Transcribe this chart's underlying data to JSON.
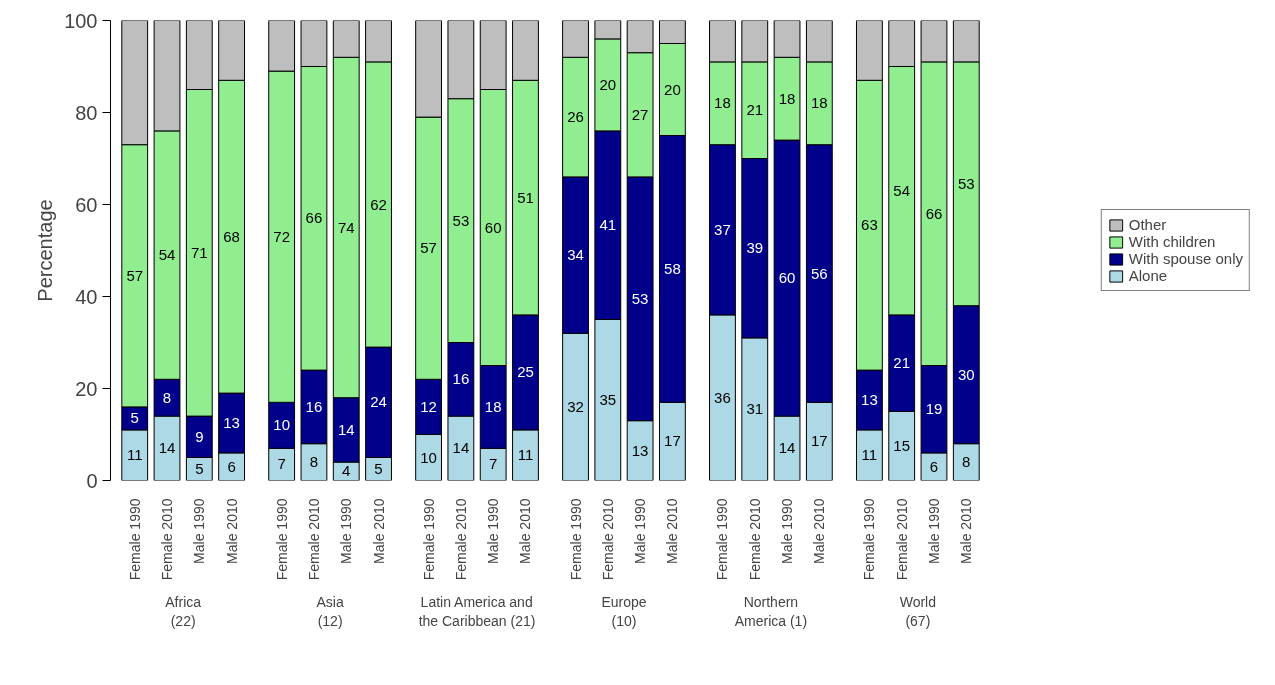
{
  "chart_data": {
    "type": "bar",
    "stacked": true,
    "ylabel": "Percentage",
    "categories": [
      "Female 1990",
      "Female 2010",
      "Male 1990",
      "Male 2010",
      "Female 1990",
      "Female 2010",
      "Male 1990",
      "Male 2010",
      "Female 1990",
      "Female 2010",
      "Male 1990",
      "Male 2010",
      "Female 1990",
      "Female 2010",
      "Male 1990",
      "Male 2010",
      "Female 1990",
      "Female 2010",
      "Male 1990",
      "Male 2010",
      "Female 1990",
      "Female 2010",
      "Male 1990",
      "Male 2010"
    ],
    "series": [
      {
        "name": "Alone",
        "color": "#add8e6",
        "values": [
          11,
          14,
          5,
          6,
          7,
          8,
          4,
          5,
          10,
          14,
          7,
          11,
          32,
          35,
          13,
          17,
          36,
          31,
          14,
          17,
          11,
          15,
          6,
          8
        ],
        "value_labels": [
          "11",
          "14",
          "5",
          "6",
          "7",
          "8",
          "4",
          "5",
          "10",
          "14",
          "7",
          "11",
          "32",
          "35",
          "13",
          "17",
          "36",
          "31",
          "14",
          "17",
          "11",
          "15",
          "6",
          "8"
        ]
      },
      {
        "name": "With spouse only",
        "color": "#00008b",
        "values": [
          5,
          8,
          9,
          13,
          10,
          16,
          14,
          24,
          12,
          16,
          18,
          25,
          34,
          41,
          53,
          58,
          37,
          39,
          60,
          56,
          13,
          21,
          19,
          30
        ],
        "value_labels": [
          "5",
          "8",
          "9",
          "13",
          "10",
          "16",
          "14",
          "24",
          "12",
          "16",
          "18",
          "25",
          "34",
          "41",
          "53",
          "58",
          "37",
          "39",
          "60",
          "56",
          "13",
          "21",
          "19",
          "30"
        ]
      },
      {
        "name": "With children",
        "color": "#90ee90",
        "values": [
          57,
          54,
          71,
          68,
          72,
          66,
          74,
          62,
          57,
          53,
          60,
          51,
          26,
          20,
          27,
          20,
          18,
          21,
          18,
          18,
          63,
          54,
          66,
          53
        ],
        "value_labels": [
          "57",
          "54",
          "71",
          "68",
          "72",
          "66",
          "74",
          "62",
          "57",
          "53",
          "60",
          "51",
          "26",
          "20",
          "27",
          "20",
          "18",
          "21",
          "18",
          "18",
          "63",
          "54",
          "66",
          "53"
        ]
      },
      {
        "name": "Other",
        "color": "#bebebe",
        "values": [
          27,
          24,
          15,
          13,
          11,
          10,
          8,
          9,
          21,
          17,
          15,
          13,
          8,
          4,
          7,
          5,
          9,
          9,
          8,
          9,
          13,
          10,
          9,
          9
        ]
      }
    ],
    "ylim": [
      0,
      100
    ],
    "yticks": [
      0,
      20,
      40,
      60,
      80,
      100
    ],
    "grid": false,
    "legend": "right",
    "annotations": [
      "Africa\n(22)",
      "Asia\n(12)",
      "Latin America and\nthe Caribbean (21)",
      "Europe\n(10)",
      "Northern\nAmerica (1)",
      "World\n(67)"
    ]
  }
}
